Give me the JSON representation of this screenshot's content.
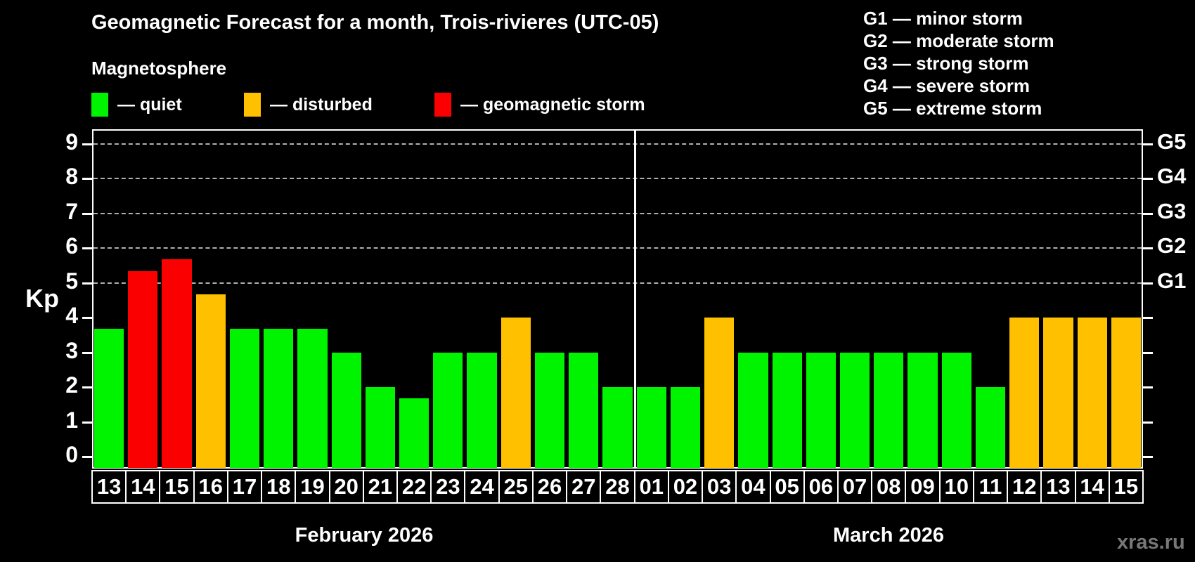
{
  "title": "Geomagnetic Forecast for a month, Trois-rivieres (UTC-05)",
  "subtitle": "Magnetosphere",
  "legend": [
    {
      "key": "quiet",
      "label": "— quiet",
      "color": "#00f400"
    },
    {
      "key": "disturbed",
      "label": "— disturbed",
      "color": "#ffc000"
    },
    {
      "key": "storm",
      "label": "— geomagnetic storm",
      "color": "#fa0000"
    }
  ],
  "g_scale_legend": [
    "G1 — minor storm",
    "G2 — moderate storm",
    "G3 — strong storm",
    "G4 — severe storm",
    "G5 — extreme storm"
  ],
  "watermark": "xras.ru",
  "chart_data": {
    "type": "bar",
    "ylabel": "Kp",
    "ylim": [
      0,
      9.4
    ],
    "yticks": [
      0,
      1,
      2,
      3,
      4,
      5,
      6,
      7,
      8,
      9
    ],
    "gridlines_at": [
      5,
      6,
      7,
      8,
      9
    ],
    "grid_style": "dashed horizontal, G-storm levels only",
    "legend_position": "top",
    "right_axis_labels": [
      {
        "kp": 5,
        "label": "G1"
      },
      {
        "kp": 6,
        "label": "G2"
      },
      {
        "kp": 7,
        "label": "G3"
      },
      {
        "kp": 8,
        "label": "G4"
      },
      {
        "kp": 9,
        "label": "G5"
      }
    ],
    "months": [
      {
        "label": "February 2026",
        "days": 16
      },
      {
        "label": "March 2026",
        "days": 15
      }
    ],
    "categories": [
      "13",
      "14",
      "15",
      "16",
      "17",
      "18",
      "19",
      "20",
      "21",
      "22",
      "23",
      "24",
      "25",
      "26",
      "27",
      "28",
      "01",
      "02",
      "03",
      "04",
      "05",
      "06",
      "07",
      "08",
      "09",
      "10",
      "11",
      "12",
      "13",
      "14",
      "15"
    ],
    "values": [
      3.67,
      5.33,
      5.67,
      4.67,
      3.67,
      3.67,
      3.67,
      3,
      2,
      1.67,
      3,
      3,
      4,
      3,
      3,
      2,
      2,
      2,
      4,
      3,
      3,
      3,
      3,
      3,
      3,
      3,
      2,
      4,
      4,
      4,
      4
    ],
    "statuses": [
      "quiet",
      "storm",
      "storm",
      "disturbed",
      "quiet",
      "quiet",
      "quiet",
      "quiet",
      "quiet",
      "quiet",
      "quiet",
      "quiet",
      "disturbed",
      "quiet",
      "quiet",
      "quiet",
      "quiet",
      "quiet",
      "disturbed",
      "quiet",
      "quiet",
      "quiet",
      "quiet",
      "quiet",
      "quiet",
      "quiet",
      "quiet",
      "disturbed",
      "disturbed",
      "disturbed",
      "disturbed"
    ],
    "colors": {
      "quiet": "#00f400",
      "disturbed": "#ffc000",
      "storm": "#fa0000"
    }
  }
}
